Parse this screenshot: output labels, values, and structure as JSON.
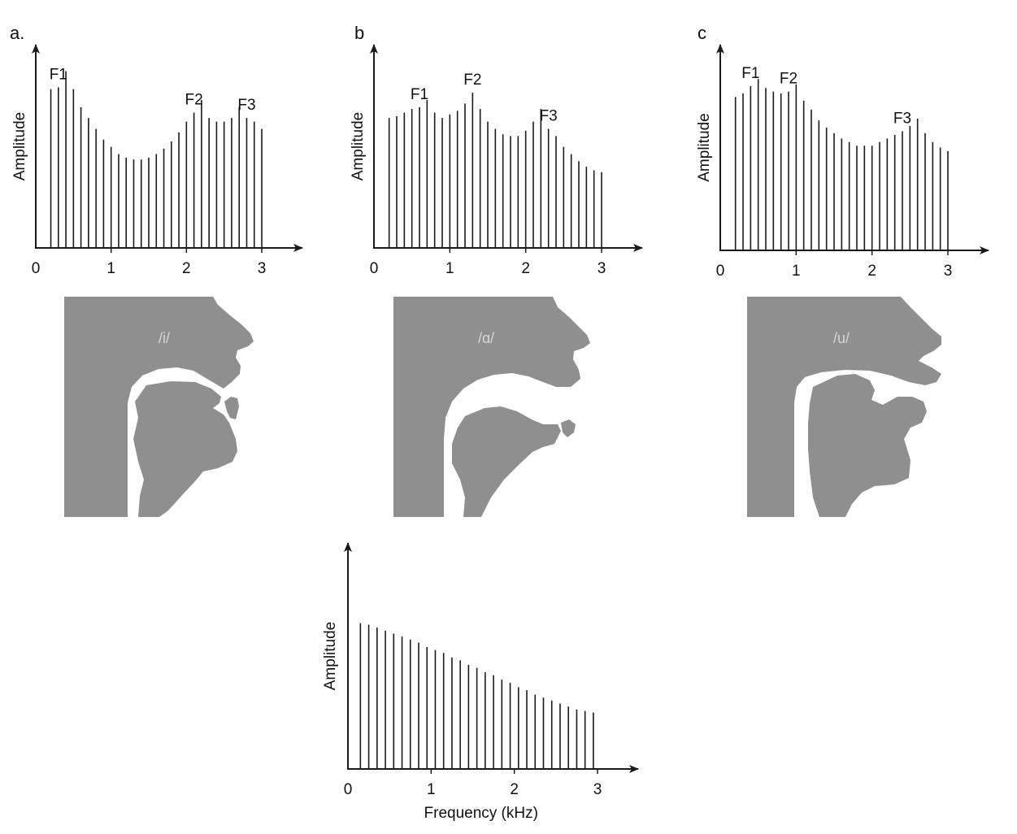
{
  "panels": [
    {
      "label": "a.",
      "vowel": "/i/"
    },
    {
      "label": "b",
      "vowel": "/ɑ/"
    },
    {
      "label": "c",
      "vowel": "/u/"
    }
  ],
  "axis_labels": {
    "y": "Amplitude",
    "x": "Frequency (kHz)",
    "ticks": [
      "0",
      "1",
      "2",
      "3"
    ]
  },
  "colors": {
    "tract_fill": "#8f8f8f",
    "line": "#1a1a1a"
  },
  "chart_data": [
    {
      "type": "bar",
      "panel": "a.",
      "ylabel": "Amplitude",
      "xlim": [
        0,
        3
      ],
      "x": [
        0.2,
        0.3,
        0.4,
        0.5,
        0.6,
        0.7,
        0.8,
        0.9,
        1.0,
        1.1,
        1.2,
        1.3,
        1.4,
        1.5,
        1.6,
        1.7,
        1.8,
        1.9,
        2.0,
        2.1,
        2.2,
        2.3,
        2.4,
        2.5,
        2.6,
        2.7,
        2.8,
        2.9,
        3.0
      ],
      "values": [
        0.88,
        0.89,
        0.98,
        0.88,
        0.78,
        0.72,
        0.66,
        0.6,
        0.56,
        0.52,
        0.5,
        0.49,
        0.49,
        0.5,
        0.52,
        0.55,
        0.59,
        0.64,
        0.7,
        0.75,
        0.82,
        0.72,
        0.7,
        0.7,
        0.72,
        0.78,
        0.72,
        0.7,
        0.66
      ],
      "annotations": [
        {
          "text": "F1",
          "x": 0.3
        },
        {
          "text": "F2",
          "x": 2.1
        },
        {
          "text": "F3",
          "x": 2.8
        }
      ]
    },
    {
      "type": "bar",
      "panel": "b",
      "ylabel": "Amplitude",
      "xlim": [
        0,
        3
      ],
      "x": [
        0.2,
        0.3,
        0.4,
        0.5,
        0.6,
        0.7,
        0.8,
        0.9,
        1.0,
        1.1,
        1.2,
        1.3,
        1.4,
        1.5,
        1.6,
        1.7,
        1.8,
        1.9,
        2.0,
        2.1,
        2.2,
        2.3,
        2.4,
        2.5,
        2.6,
        2.7,
        2.8,
        2.9,
        3.0
      ],
      "values": [
        0.72,
        0.73,
        0.75,
        0.77,
        0.78,
        0.82,
        0.75,
        0.72,
        0.74,
        0.76,
        0.8,
        0.86,
        0.77,
        0.7,
        0.66,
        0.63,
        0.62,
        0.62,
        0.65,
        0.7,
        0.77,
        0.66,
        0.62,
        0.56,
        0.52,
        0.48,
        0.45,
        0.43,
        0.42
      ],
      "annotations": [
        {
          "text": "F1",
          "x": 0.6
        },
        {
          "text": "F2",
          "x": 1.3
        },
        {
          "text": "F3",
          "x": 2.3
        }
      ]
    },
    {
      "type": "bar",
      "panel": "c",
      "ylabel": "Amplitude",
      "xlim": [
        0,
        3
      ],
      "x": [
        0.2,
        0.3,
        0.4,
        0.5,
        0.6,
        0.7,
        0.8,
        0.9,
        1.0,
        1.1,
        1.2,
        1.3,
        1.4,
        1.5,
        1.6,
        1.7,
        1.8,
        1.9,
        2.0,
        2.1,
        2.2,
        2.3,
        2.4,
        2.5,
        2.6,
        2.7,
        2.8,
        2.9,
        3.0
      ],
      "values": [
        0.85,
        0.87,
        0.91,
        0.95,
        0.9,
        0.88,
        0.87,
        0.88,
        0.92,
        0.83,
        0.78,
        0.72,
        0.68,
        0.65,
        0.62,
        0.6,
        0.58,
        0.58,
        0.58,
        0.6,
        0.62,
        0.64,
        0.66,
        0.69,
        0.73,
        0.65,
        0.6,
        0.57,
        0.55
      ],
      "annotations": [
        {
          "text": "F1",
          "x": 0.4
        },
        {
          "text": "F2",
          "x": 0.9
        },
        {
          "text": "F3",
          "x": 2.4
        }
      ]
    },
    {
      "type": "bar",
      "panel": "source",
      "xlabel": "Frequency (kHz)",
      "ylabel": "Amplitude",
      "xlim": [
        0,
        3
      ],
      "x": [
        0.15,
        0.25,
        0.35,
        0.45,
        0.55,
        0.65,
        0.75,
        0.85,
        0.95,
        1.05,
        1.15,
        1.25,
        1.35,
        1.45,
        1.55,
        1.65,
        1.75,
        1.85,
        1.95,
        2.05,
        2.15,
        2.25,
        2.35,
        2.45,
        2.55,
        2.65,
        2.75,
        2.85,
        2.95
      ],
      "values": [
        0.98,
        0.97,
        0.95,
        0.93,
        0.91,
        0.89,
        0.87,
        0.85,
        0.82,
        0.8,
        0.78,
        0.75,
        0.73,
        0.7,
        0.68,
        0.65,
        0.63,
        0.6,
        0.58,
        0.55,
        0.53,
        0.5,
        0.48,
        0.46,
        0.44,
        0.42,
        0.4,
        0.39,
        0.38
      ]
    }
  ]
}
